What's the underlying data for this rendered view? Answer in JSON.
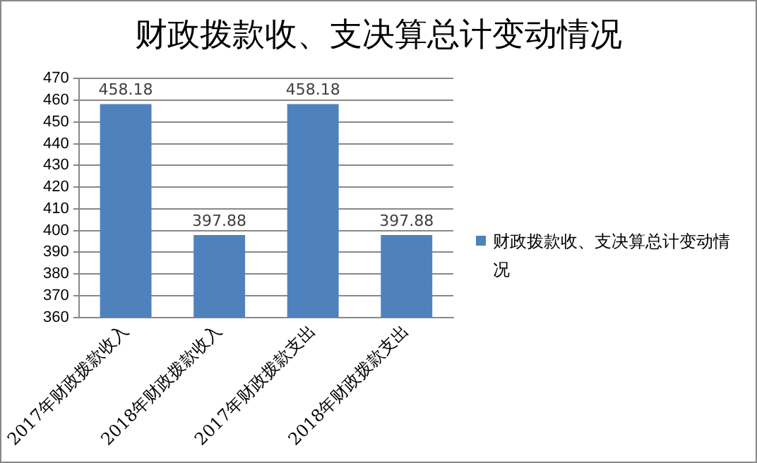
{
  "chart_data": {
    "type": "bar",
    "title": "财政拨款收、支决算总计变动情况",
    "categories": [
      "2017年财政拨款收入",
      "2018年财政拨款收入",
      "2017年财政拨款支出",
      "2018年财政拨款支出"
    ],
    "series": [
      {
        "name": "财政拨款收、支决算总计变动情况",
        "color": "#4f81bd",
        "values": [
          458.18,
          397.88,
          458.18,
          397.88
        ]
      }
    ],
    "ylim": [
      360,
      470
    ],
    "yticks": [
      360,
      370,
      380,
      390,
      400,
      410,
      420,
      430,
      440,
      450,
      460,
      470
    ],
    "grid": "y",
    "legend": "right",
    "data_labels": true
  }
}
